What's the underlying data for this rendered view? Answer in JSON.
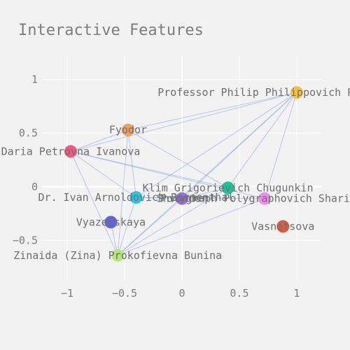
{
  "chart_data": {
    "type": "scatter",
    "title": "Interactive Features",
    "xlim": [
      -1.22,
      1.22
    ],
    "ylim": [
      -0.87,
      1.22
    ],
    "x_ticks": [
      {
        "value": -1,
        "label": "−1"
      },
      {
        "value": -0.5,
        "label": "−0.5"
      },
      {
        "value": 0,
        "label": "0"
      },
      {
        "value": 0.5,
        "label": "0.5"
      },
      {
        "value": 1,
        "label": "1"
      }
    ],
    "y_ticks": [
      {
        "value": 1,
        "label": "1"
      },
      {
        "value": 0.5,
        "label": "0.5"
      },
      {
        "value": 0,
        "label": "0"
      },
      {
        "value": -0.5,
        "label": "−0.5"
      }
    ],
    "grid": true,
    "nodes": [
      {
        "label": "Professor Philip Philippovich Preobrazhensky",
        "x": 1.0,
        "y": 0.88,
        "color": "#f5c242"
      },
      {
        "label": "Fyodor",
        "x": -0.47,
        "y": 0.53,
        "color": "#f0a060"
      },
      {
        "label": "Daria Petrovna Ivanova",
        "x": -0.97,
        "y": 0.33,
        "color": "#ef5a80"
      },
      {
        "label": "Klim Grigorievich Chugunkin",
        "x": 0.4,
        "y": -0.01,
        "color": "#1fc19a"
      },
      {
        "label": "Dr. Ivan Arnoldovich Bormenthal",
        "x": -0.4,
        "y": -0.1,
        "color": "#2ec4e0"
      },
      {
        "label": "Shvonder",
        "x": 0.0,
        "y": -0.11,
        "color": "#9a6cf0"
      },
      {
        "label": "Polygraph Polygraphovich Sharikov",
        "x": 0.72,
        "y": -0.11,
        "color": "#f08cf0"
      },
      {
        "label": "Vyazemskaya",
        "x": -0.62,
        "y": -0.33,
        "color": "#5e63e0"
      },
      {
        "label": "Vasnetsova",
        "x": 0.88,
        "y": -0.37,
        "color": "#e05a42"
      },
      {
        "label": "Zinaida (Zina) Prokofievna Bunina",
        "x": -0.56,
        "y": -0.64,
        "color": "#b4e87a"
      }
    ],
    "edges": [
      [
        0,
        1
      ],
      [
        0,
        2
      ],
      [
        0,
        3
      ],
      [
        0,
        4
      ],
      [
        0,
        5
      ],
      [
        0,
        6
      ],
      [
        0,
        9
      ],
      [
        1,
        2
      ],
      [
        1,
        4
      ],
      [
        1,
        3
      ],
      [
        1,
        9
      ],
      [
        2,
        3
      ],
      [
        2,
        4
      ],
      [
        2,
        6
      ],
      [
        2,
        9
      ],
      [
        3,
        9
      ],
      [
        3,
        5
      ],
      [
        4,
        5
      ],
      [
        4,
        6
      ],
      [
        4,
        9
      ],
      [
        5,
        9
      ],
      [
        6,
        9
      ],
      [
        7,
        9
      ]
    ]
  }
}
